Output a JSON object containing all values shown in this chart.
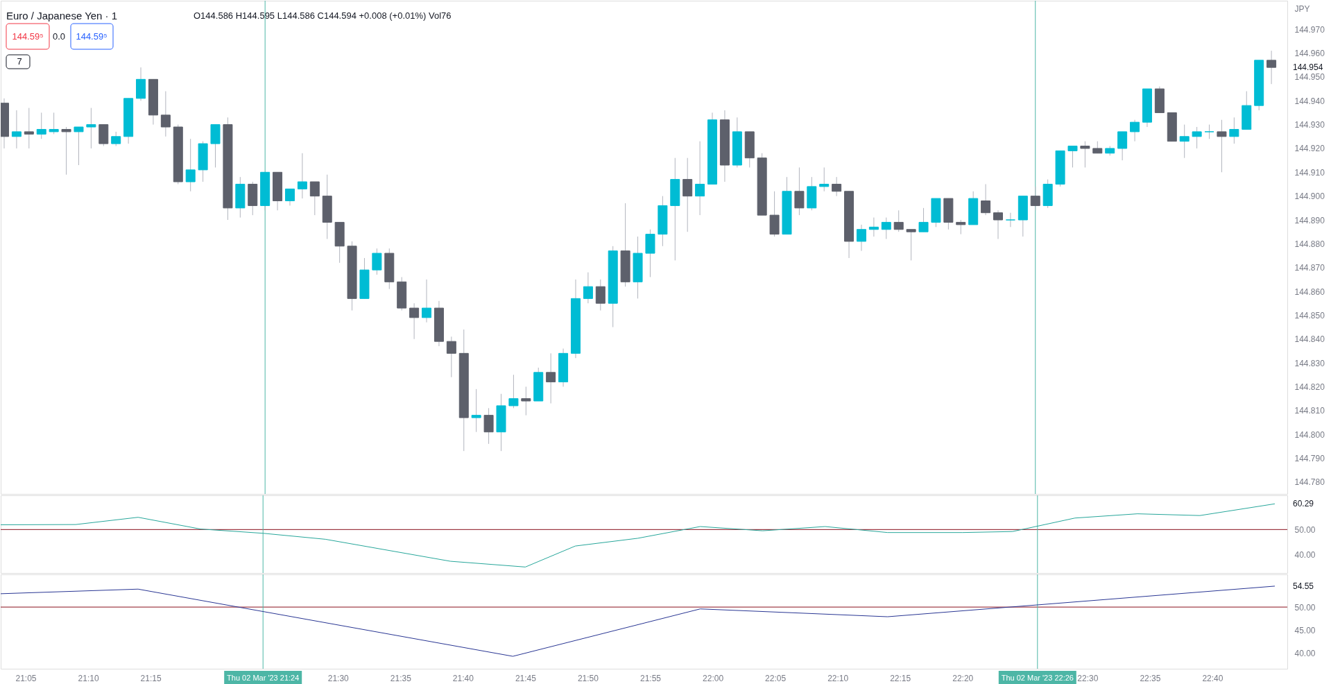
{
  "chart_data": [
    {
      "type": "candlestick",
      "title": "Euro / Japanese Yen · 1",
      "subtitle": "O144.586 H144.595 L144.586 C144.594 +0.008 (+0.01%) Vol76",
      "ylabel": "JPY",
      "x": [
        "2023-03-02T21:03",
        "2023-03-02T21:04",
        "2023-03-02T21:05",
        "2023-03-02T21:06",
        "2023-03-02T21:07",
        "2023-03-02T21:08",
        "2023-03-02T21:09",
        "2023-03-02T21:10",
        "2023-03-02T21:11",
        "2023-03-02T21:12",
        "2023-03-02T21:13",
        "2023-03-02T21:14",
        "2023-03-02T21:15",
        "2023-03-02T21:16",
        "2023-03-02T21:17",
        "2023-03-02T21:18",
        "2023-03-02T21:19",
        "2023-03-02T21:20",
        "2023-03-02T21:21",
        "2023-03-02T21:22",
        "2023-03-02T21:23",
        "2023-03-02T21:24",
        "2023-03-02T21:25",
        "2023-03-02T21:26",
        "2023-03-02T21:27",
        "2023-03-02T21:28",
        "2023-03-02T21:29",
        "2023-03-02T21:30",
        "2023-03-02T21:31",
        "2023-03-02T21:32",
        "2023-03-02T21:33",
        "2023-03-02T21:34",
        "2023-03-02T21:35",
        "2023-03-02T21:36",
        "2023-03-02T21:37",
        "2023-03-02T21:38",
        "2023-03-02T21:39",
        "2023-03-02T21:40",
        "2023-03-02T21:41",
        "2023-03-02T21:42",
        "2023-03-02T21:43",
        "2023-03-02T21:44",
        "2023-03-02T21:45",
        "2023-03-02T21:46",
        "2023-03-02T21:47",
        "2023-03-02T21:48",
        "2023-03-02T21:49",
        "2023-03-02T21:50",
        "2023-03-02T21:51",
        "2023-03-02T21:52",
        "2023-03-02T21:53",
        "2023-03-02T21:54",
        "2023-03-02T21:55",
        "2023-03-02T21:56",
        "2023-03-02T21:57",
        "2023-03-02T21:58",
        "2023-03-02T21:59",
        "2023-03-02T22:00",
        "2023-03-02T22:01",
        "2023-03-02T22:02",
        "2023-03-02T22:03",
        "2023-03-02T22:04",
        "2023-03-02T22:05",
        "2023-03-02T22:06",
        "2023-03-02T22:07",
        "2023-03-02T22:08",
        "2023-03-02T22:09",
        "2023-03-02T22:10",
        "2023-03-02T22:11",
        "2023-03-02T22:12",
        "2023-03-02T22:13",
        "2023-03-02T22:14",
        "2023-03-02T22:15",
        "2023-03-02T22:16",
        "2023-03-02T22:17",
        "2023-03-02T22:18",
        "2023-03-02T22:19",
        "2023-03-02T22:20",
        "2023-03-02T22:21",
        "2023-03-02T22:22",
        "2023-03-02T22:23",
        "2023-03-02T22:24",
        "2023-03-02T22:25",
        "2023-03-02T22:26",
        "2023-03-02T22:27",
        "2023-03-02T22:28",
        "2023-03-02T22:29",
        "2023-03-02T22:30",
        "2023-03-02T22:31",
        "2023-03-02T22:32",
        "2023-03-02T22:33",
        "2023-03-02T22:34",
        "2023-03-02T22:35",
        "2023-03-02T22:36",
        "2023-03-02T22:37",
        "2023-03-02T22:38",
        "2023-03-02T22:39",
        "2023-03-02T22:40",
        "2023-03-02T22:41",
        "2023-03-02T22:42",
        "2023-03-02T22:43",
        "2023-03-02T22:44",
        "2023-03-02T22:45"
      ],
      "ohlc": [
        [
          144.939,
          144.941,
          144.92,
          144.925
        ],
        [
          144.925,
          144.936,
          144.92,
          144.927
        ],
        [
          144.927,
          144.937,
          144.92,
          144.926
        ],
        [
          144.926,
          144.935,
          144.924,
          144.928
        ],
        [
          144.927,
          144.935,
          144.926,
          144.928
        ],
        [
          144.928,
          144.929,
          144.909,
          144.927
        ],
        [
          144.927,
          144.929,
          144.913,
          144.929
        ],
        [
          144.929,
          144.937,
          144.92,
          144.93
        ],
        [
          144.93,
          144.93,
          144.921,
          144.922
        ],
        [
          144.922,
          144.927,
          144.921,
          144.925
        ],
        [
          144.925,
          144.941,
          144.922,
          144.941
        ],
        [
          144.941,
          144.954,
          144.94,
          144.949
        ],
        [
          144.949,
          144.949,
          144.93,
          144.934
        ],
        [
          144.934,
          144.944,
          144.925,
          144.929
        ],
        [
          144.929,
          144.93,
          144.905,
          144.906
        ],
        [
          144.906,
          144.924,
          144.902,
          144.911
        ],
        [
          144.911,
          144.923,
          144.906,
          144.922
        ],
        [
          144.922,
          144.93,
          144.912,
          144.93
        ],
        [
          144.93,
          144.933,
          144.89,
          144.895
        ],
        [
          144.895,
          144.908,
          144.891,
          144.905
        ],
        [
          144.905,
          144.906,
          144.892,
          144.896
        ],
        [
          144.896,
          144.91,
          144.894,
          144.91
        ],
        [
          144.91,
          144.91,
          144.894,
          144.898
        ],
        [
          144.898,
          144.903,
          144.896,
          144.903
        ],
        [
          144.903,
          144.918,
          144.899,
          144.906
        ],
        [
          144.906,
          144.906,
          144.892,
          144.9
        ],
        [
          144.9,
          144.909,
          144.882,
          144.889
        ],
        [
          144.889,
          144.889,
          144.872,
          144.879
        ],
        [
          144.879,
          144.881,
          144.852,
          144.857
        ],
        [
          144.857,
          144.874,
          144.857,
          144.869
        ],
        [
          144.869,
          144.878,
          144.867,
          144.876
        ],
        [
          144.876,
          144.878,
          144.861,
          144.864
        ],
        [
          144.864,
          144.866,
          144.852,
          144.853
        ],
        [
          144.853,
          144.855,
          144.84,
          144.849
        ],
        [
          144.849,
          144.865,
          144.847,
          144.853
        ],
        [
          144.853,
          144.856,
          144.837,
          144.839
        ],
        [
          144.839,
          144.841,
          144.824,
          144.834
        ],
        [
          144.834,
          144.844,
          144.793,
          144.807
        ],
        [
          144.807,
          144.819,
          144.801,
          144.808
        ],
        [
          144.808,
          144.811,
          144.796,
          144.801
        ],
        [
          144.801,
          144.817,
          144.793,
          144.812
        ],
        [
          144.812,
          144.825,
          144.811,
          144.815
        ],
        [
          144.815,
          144.82,
          144.808,
          144.814
        ],
        [
          144.814,
          144.828,
          144.814,
          144.826
        ],
        [
          144.826,
          144.834,
          144.813,
          144.822
        ],
        [
          144.822,
          144.836,
          144.82,
          144.834
        ],
        [
          144.834,
          144.865,
          144.832,
          144.857
        ],
        [
          144.857,
          144.868,
          144.855,
          144.862
        ],
        [
          144.862,
          144.865,
          144.852,
          144.855
        ],
        [
          144.855,
          144.879,
          144.845,
          144.877
        ],
        [
          144.877,
          144.897,
          144.862,
          144.864
        ],
        [
          144.864,
          144.883,
          144.857,
          144.876
        ],
        [
          144.876,
          144.886,
          144.866,
          144.884
        ],
        [
          144.884,
          144.9,
          144.879,
          144.896
        ],
        [
          144.896,
          144.916,
          144.873,
          144.907
        ],
        [
          144.907,
          144.916,
          144.885,
          144.9
        ],
        [
          144.9,
          144.923,
          144.892,
          144.905
        ],
        [
          144.905,
          144.935,
          144.905,
          144.932
        ],
        [
          144.932,
          144.936,
          144.906,
          144.913
        ],
        [
          144.913,
          144.933,
          144.912,
          144.927
        ],
        [
          144.927,
          144.927,
          144.912,
          144.916
        ],
        [
          144.916,
          144.918,
          144.892,
          144.892
        ],
        [
          144.892,
          144.902,
          144.883,
          144.884
        ],
        [
          144.884,
          144.908,
          144.884,
          144.902
        ],
        [
          144.902,
          144.912,
          144.892,
          144.895
        ],
        [
          144.895,
          144.908,
          144.894,
          144.904
        ],
        [
          144.904,
          144.912,
          144.902,
          144.905
        ],
        [
          144.905,
          144.908,
          144.9,
          144.902
        ],
        [
          144.902,
          144.902,
          144.874,
          144.881
        ],
        [
          144.881,
          144.888,
          144.877,
          144.886
        ],
        [
          144.886,
          144.891,
          144.883,
          144.887
        ],
        [
          144.886,
          144.891,
          144.882,
          144.889
        ],
        [
          144.889,
          144.894,
          144.885,
          144.886
        ],
        [
          144.886,
          144.886,
          144.873,
          144.885
        ],
        [
          144.885,
          144.895,
          144.885,
          144.889
        ],
        [
          144.889,
          144.899,
          144.887,
          144.899
        ],
        [
          144.899,
          144.899,
          144.886,
          144.889
        ],
        [
          144.889,
          144.89,
          144.884,
          144.888
        ],
        [
          144.888,
          144.902,
          144.888,
          144.899
        ],
        [
          144.898,
          144.905,
          144.892,
          144.893
        ],
        [
          144.893,
          144.894,
          144.882,
          144.89
        ],
        [
          144.89,
          144.893,
          144.887,
          144.89
        ],
        [
          144.89,
          144.9,
          144.883,
          144.9
        ],
        [
          144.9,
          144.904,
          144.894,
          144.896
        ],
        [
          144.896,
          144.907,
          144.895,
          144.905
        ],
        [
          144.905,
          144.919,
          144.904,
          144.919
        ],
        [
          144.919,
          144.921,
          144.912,
          144.921
        ],
        [
          144.921,
          144.923,
          144.912,
          144.92
        ],
        [
          144.92,
          144.923,
          144.918,
          144.918
        ],
        [
          144.918,
          144.921,
          144.917,
          144.92
        ],
        [
          144.92,
          144.927,
          144.915,
          144.927
        ],
        [
          144.927,
          144.932,
          144.923,
          144.931
        ],
        [
          144.931,
          144.945,
          144.929,
          144.945
        ],
        [
          144.945,
          144.946,
          144.935,
          144.935
        ],
        [
          144.935,
          144.935,
          144.923,
          144.923
        ],
        [
          144.923,
          144.93,
          144.916,
          144.925
        ],
        [
          144.925,
          144.929,
          144.92,
          144.927
        ],
        [
          144.927,
          144.93,
          144.924,
          144.927
        ],
        [
          144.927,
          144.932,
          144.91,
          144.925
        ],
        [
          144.925,
          144.933,
          144.922,
          144.928
        ],
        [
          144.928,
          144.944,
          144.928,
          144.938
        ],
        [
          144.938,
          144.957,
          144.936,
          144.957
        ],
        [
          144.957,
          144.961,
          144.947,
          144.954
        ]
      ],
      "colors": [
        "#5d606b",
        "#00bcd4",
        "#5d606b",
        "#00bcd4",
        "#00bcd4",
        "#5d606b",
        "#00bcd4",
        "#00bcd4",
        "#5d606b",
        "#00bcd4",
        "#00bcd4",
        "#00bcd4",
        "#5d606b",
        "#5d606b",
        "#5d606b",
        "#00bcd4",
        "#00bcd4",
        "#00bcd4",
        "#5d606b",
        "#00bcd4",
        "#5d606b",
        "#00bcd4",
        "#5d606b",
        "#00bcd4",
        "#00bcd4",
        "#5d606b",
        "#5d606b",
        "#5d606b",
        "#5d606b",
        "#00bcd4",
        "#00bcd4",
        "#5d606b",
        "#5d606b",
        "#5d606b",
        "#00bcd4",
        "#5d606b",
        "#5d606b",
        "#5d606b",
        "#00bcd4",
        "#5d606b",
        "#00bcd4",
        "#00bcd4",
        "#5d606b",
        "#00bcd4",
        "#5d606b",
        "#00bcd4",
        "#00bcd4",
        "#00bcd4",
        "#5d606b",
        "#00bcd4",
        "#5d606b",
        "#00bcd4",
        "#00bcd4",
        "#00bcd4",
        "#00bcd4",
        "#5d606b",
        "#00bcd4",
        "#00bcd4",
        "#5d606b",
        "#00bcd4",
        "#5d606b",
        "#5d606b",
        "#5d606b",
        "#00bcd4",
        "#5d606b",
        "#00bcd4",
        "#00bcd4",
        "#5d606b",
        "#5d606b",
        "#00bcd4",
        "#00bcd4",
        "#00bcd4",
        "#5d606b",
        "#5d606b",
        "#00bcd4",
        "#00bcd4",
        "#5d606b",
        "#5d606b",
        "#00bcd4",
        "#5d606b",
        "#5d606b",
        "#00bcd4",
        "#00bcd4",
        "#5d606b",
        "#00bcd4",
        "#00bcd4",
        "#00bcd4",
        "#5d606b",
        "#5d606b",
        "#00bcd4",
        "#00bcd4",
        "#00bcd4",
        "#00bcd4",
        "#5d606b",
        "#5d606b",
        "#00bcd4",
        "#00bcd4",
        "#00bcd4",
        "#5d606b",
        "#00bcd4",
        "#00bcd4",
        "#00bcd4",
        "#5d606b"
      ],
      "xlim": [
        "2023-03-02T21:03",
        "2023-03-02T22:46"
      ],
      "ylim": [
        144.775,
        144.982
      ],
      "yticks": [
        {
          "value": 144.78,
          "label": "144.780"
        },
        {
          "value": 144.79,
          "label": "144.790"
        },
        {
          "value": 144.8,
          "label": "144.800"
        },
        {
          "value": 144.81,
          "label": "144.810"
        },
        {
          "value": 144.82,
          "label": "144.820"
        },
        {
          "value": 144.83,
          "label": "144.830"
        },
        {
          "value": 144.84,
          "label": "144.840"
        },
        {
          "value": 144.85,
          "label": "144.850"
        },
        {
          "value": 144.86,
          "label": "144.860"
        },
        {
          "value": 144.87,
          "label": "144.870"
        },
        {
          "value": 144.88,
          "label": "144.880"
        },
        {
          "value": 144.89,
          "label": "144.890"
        },
        {
          "value": 144.9,
          "label": "144.900"
        },
        {
          "value": 144.91,
          "label": "144.910"
        },
        {
          "value": 144.92,
          "label": "144.920"
        },
        {
          "value": 144.93,
          "label": "144.930"
        },
        {
          "value": 144.94,
          "label": "144.940"
        },
        {
          "value": 144.95,
          "label": "144.950"
        },
        {
          "value": 144.96,
          "label": "144.960"
        },
        {
          "value": 144.97,
          "label": "144.970"
        }
      ],
      "tick_labels": "y",
      "ref_lines": [
        {
          "axis": "x",
          "value": "2023-03-02T21:24",
          "label": null,
          "color": "#4db6a6"
        },
        {
          "axis": "x",
          "value": "2023-03-02T22:26",
          "label": null,
          "color": "#4db6a6"
        }
      ],
      "annotations": [
        "144.59⁵",
        "0.0",
        "144.59⁵",
        "7",
        "144.954"
      ]
    },
    {
      "type": "line",
      "x": [
        "2023-03-02T21:03",
        "2023-03-02T21:09",
        "2023-03-02T21:14",
        "2023-03-02T21:19",
        "2023-03-02T21:24",
        "2023-03-02T21:29",
        "2023-03-02T21:39",
        "2023-03-02T21:45",
        "2023-03-02T21:49",
        "2023-03-02T21:54",
        "2023-03-02T21:59",
        "2023-03-02T22:04",
        "2023-03-02T22:09",
        "2023-03-02T22:14",
        "2023-03-02T22:20",
        "2023-03-02T22:24",
        "2023-03-02T22:29",
        "2023-03-02T22:34",
        "2023-03-02T22:39",
        "2023-03-02T22:45"
      ],
      "series": [
        {
          "color": "#26a69a",
          "values": [
            51.9,
            52.0,
            54.9,
            50.2,
            48.5,
            46.1,
            37.3,
            35.0,
            43.4,
            46.5,
            51.2,
            49.5,
            51.2,
            48.8,
            48.8,
            49.2,
            54.6,
            56.3,
            55.6,
            60.29
          ]
        }
      ],
      "xlim": [
        "2023-03-02T21:03",
        "2023-03-02T22:46"
      ],
      "ylim": [
        32.6,
        63.7
      ],
      "yticks": [
        {
          "value": 40,
          "label": "40.00"
        },
        {
          "value": 50,
          "label": "50.00"
        }
      ],
      "tick_labels": "y",
      "ref_lines": [
        {
          "axis": "y",
          "value": 50,
          "label": null,
          "color": "#880e1c"
        },
        {
          "axis": "x",
          "value": "2023-03-02T21:24",
          "label": null,
          "color": "#4db6a6"
        },
        {
          "axis": "x",
          "value": "2023-03-02T22:26",
          "label": null,
          "color": "#4db6a6"
        }
      ],
      "annotations": [
        "60.29"
      ]
    },
    {
      "type": "line",
      "x": [
        "2023-03-02T21:03",
        "2023-03-02T21:14",
        "2023-03-02T21:44",
        "2023-03-02T21:59",
        "2023-03-02T22:14",
        "2023-03-02T22:45"
      ],
      "series": [
        {
          "color": "#283593",
          "values": [
            52.9,
            53.9,
            39.3,
            49.6,
            47.9,
            54.55
          ]
        }
      ],
      "xlim": [
        "2023-03-02T21:03",
        "2023-03-02T22:46"
      ],
      "xticks": [
        {
          "value": "2023-03-02T21:05",
          "label": "21:05"
        },
        {
          "value": "2023-03-02T21:10",
          "label": "21:10"
        },
        {
          "value": "2023-03-02T21:15",
          "label": "21:15"
        },
        {
          "value": "2023-03-02T21:30",
          "label": "21:30"
        },
        {
          "value": "2023-03-02T21:35",
          "label": "21:35"
        },
        {
          "value": "2023-03-02T21:40",
          "label": "21:40"
        },
        {
          "value": "2023-03-02T21:45",
          "label": "21:45"
        },
        {
          "value": "2023-03-02T21:50",
          "label": "21:50"
        },
        {
          "value": "2023-03-02T21:55",
          "label": "21:55"
        },
        {
          "value": "2023-03-02T22:00",
          "label": "22:00"
        },
        {
          "value": "2023-03-02T22:05",
          "label": "22:05"
        },
        {
          "value": "2023-03-02T22:10",
          "label": "22:10"
        },
        {
          "value": "2023-03-02T22:15",
          "label": "22:15"
        },
        {
          "value": "2023-03-02T22:20",
          "label": "22:20"
        },
        {
          "value": "2023-03-02T22:30",
          "label": "22:30"
        },
        {
          "value": "2023-03-02T22:35",
          "label": "22:35"
        },
        {
          "value": "2023-03-02T22:40",
          "label": "22:40"
        }
      ],
      "ylim": [
        36.6,
        57.1
      ],
      "yticks": [
        {
          "value": 40,
          "label": "40.00"
        },
        {
          "value": 45,
          "label": "45.00"
        },
        {
          "value": 50,
          "label": "50.00"
        }
      ],
      "ref_lines": [
        {
          "axis": "y",
          "value": 50,
          "label": null,
          "color": "#880e1c"
        },
        {
          "axis": "x",
          "value": "2023-03-02T21:24",
          "label": "Thu 02 Mar '23  21:24",
          "color": "#4db6a6"
        },
        {
          "axis": "x",
          "value": "2023-03-02T22:26",
          "label": "Thu 02 Mar '23  22:26",
          "color": "#4db6a6"
        }
      ],
      "annotations": [
        "54.55"
      ]
    }
  ]
}
